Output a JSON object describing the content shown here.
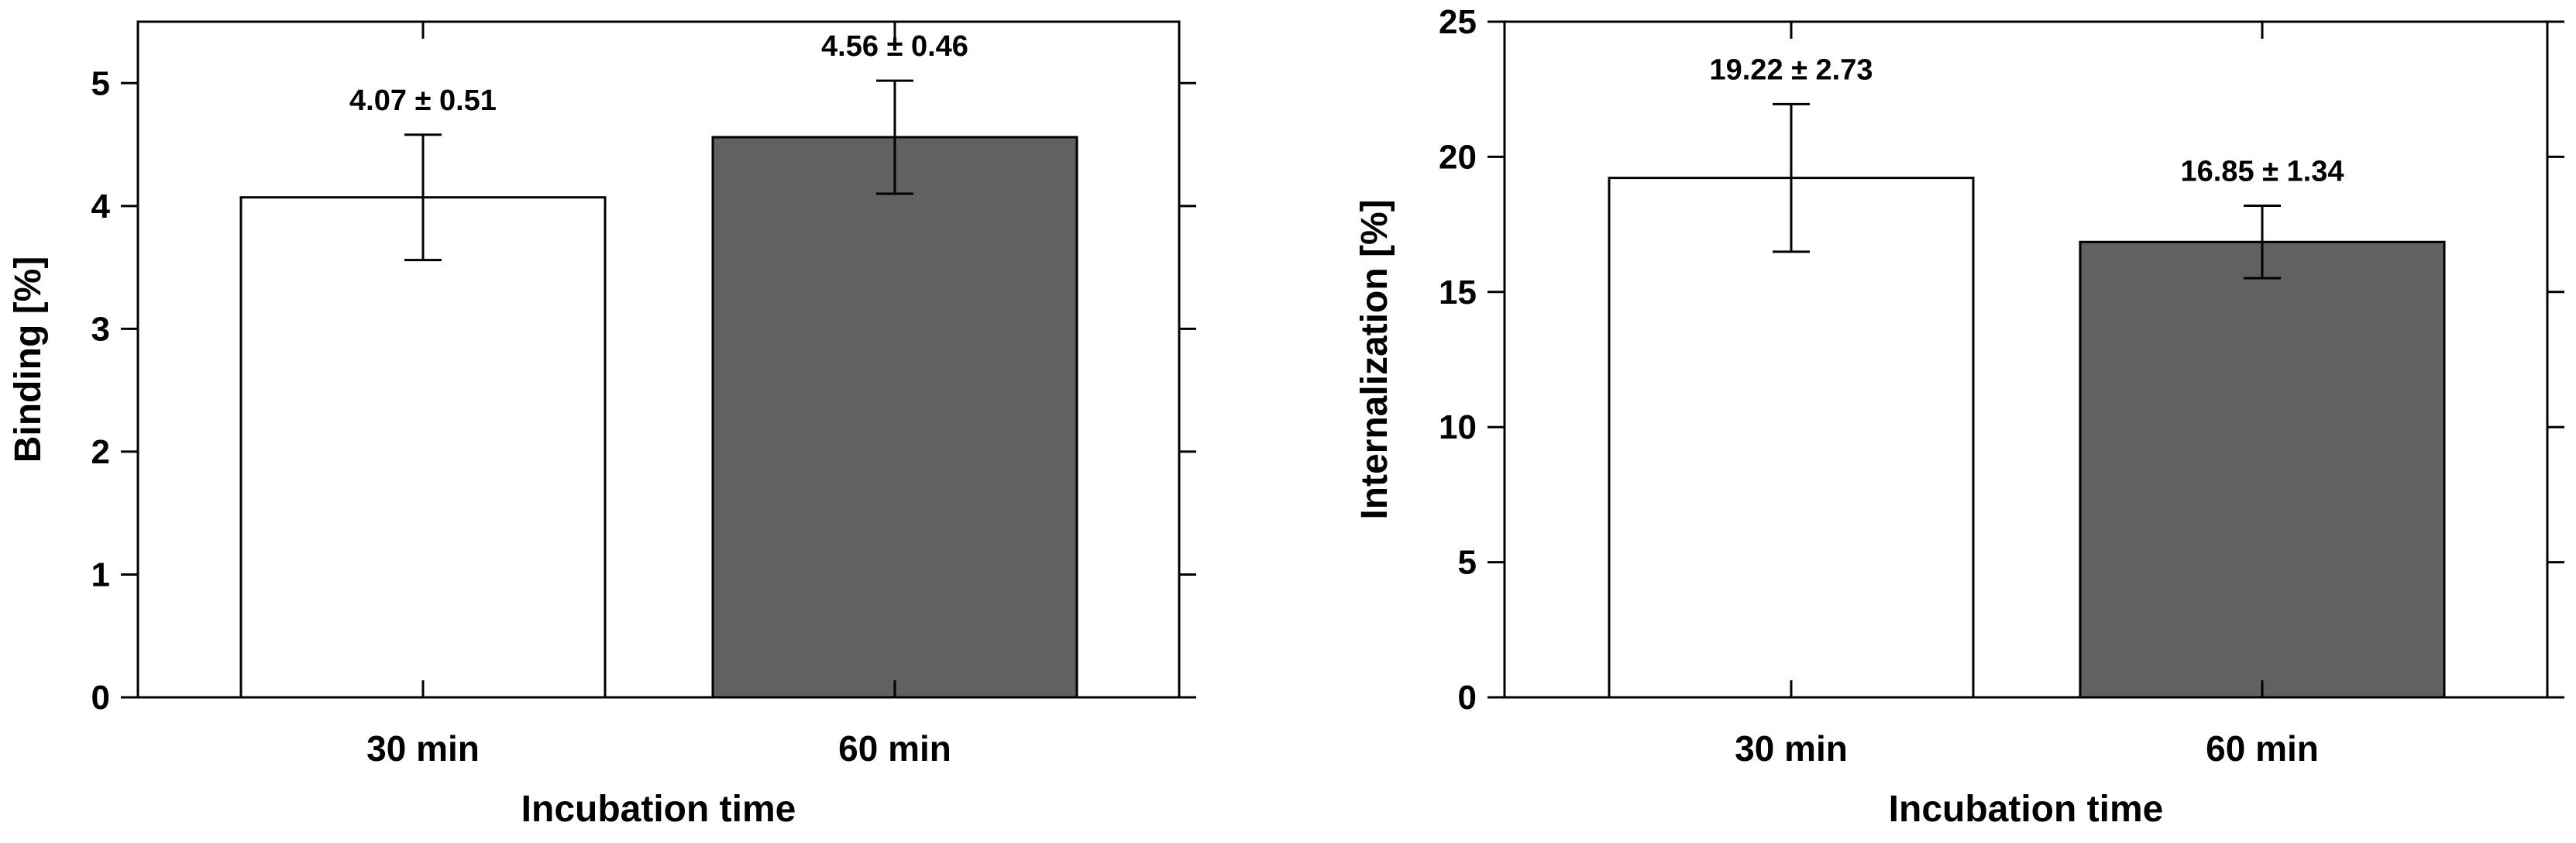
{
  "chart_data": [
    {
      "type": "bar",
      "categories": [
        "30 min",
        "60 min"
      ],
      "values": [
        4.07,
        4.56
      ],
      "errors": [
        0.51,
        0.46
      ],
      "data_labels": [
        "4.07 ± 0.51",
        "4.56 ± 0.46"
      ],
      "bar_colors": [
        "#ffffff",
        "#616161"
      ],
      "xlabel": "Incubation time",
      "ylabel": "Binding [%]",
      "ylim": [
        0,
        5.5
      ],
      "yticks": [
        0,
        1,
        2,
        3,
        4,
        5
      ],
      "ytick_labels": [
        "0",
        "1",
        "2",
        "3",
        "4",
        "5"
      ],
      "grid": false
    },
    {
      "type": "bar",
      "categories": [
        "30 min",
        "60 min"
      ],
      "values": [
        19.22,
        16.85
      ],
      "errors": [
        2.73,
        1.34
      ],
      "data_labels": [
        "19.22 ± 2.73",
        "16.85 ± 1.34"
      ],
      "bar_colors": [
        "#ffffff",
        "#616161"
      ],
      "xlabel": "Incubation time",
      "ylabel": "Internalization [%]",
      "ylim": [
        0,
        25
      ],
      "yticks": [
        0,
        5,
        10,
        15,
        20,
        25
      ],
      "ytick_labels": [
        "0",
        "5",
        "10",
        "15",
        "20",
        "25"
      ],
      "grid": false
    }
  ]
}
